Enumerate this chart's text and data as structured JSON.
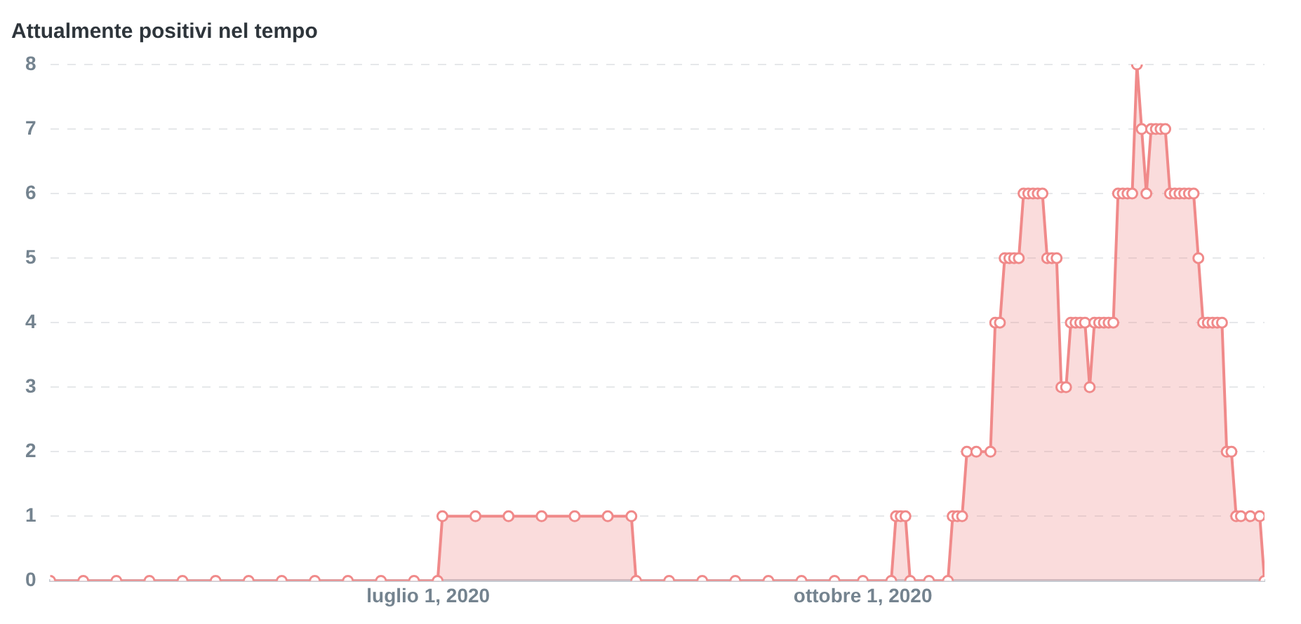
{
  "chart_data": {
    "type": "area",
    "title": "Attualmente positivi nel tempo",
    "x": [
      "2020-04-12",
      "2020-04-19",
      "2020-04-26",
      "2020-05-03",
      "2020-05-10",
      "2020-05-17",
      "2020-05-24",
      "2020-05-31",
      "2020-06-07",
      "2020-06-14",
      "2020-06-21",
      "2020-06-28",
      "2020-07-03",
      "2020-07-04",
      "2020-07-11",
      "2020-07-18",
      "2020-07-25",
      "2020-08-01",
      "2020-08-08",
      "2020-08-13",
      "2020-08-14",
      "2020-08-21",
      "2020-08-28",
      "2020-09-04",
      "2020-09-11",
      "2020-09-18",
      "2020-09-25",
      "2020-10-01",
      "2020-10-07",
      "2020-10-08",
      "2020-10-09",
      "2020-10-10",
      "2020-10-11",
      "2020-10-15",
      "2020-10-19",
      "2020-10-20",
      "2020-10-21",
      "2020-10-22",
      "2020-10-23",
      "2020-10-25",
      "2020-10-28",
      "2020-10-29",
      "2020-10-30",
      "2020-10-31",
      "2020-11-01",
      "2020-11-02",
      "2020-11-03",
      "2020-11-04",
      "2020-11-05",
      "2020-11-06",
      "2020-11-07",
      "2020-11-08",
      "2020-11-09",
      "2020-11-10",
      "2020-11-11",
      "2020-11-12",
      "2020-11-13",
      "2020-11-14",
      "2020-11-15",
      "2020-11-16",
      "2020-11-17",
      "2020-11-18",
      "2020-11-19",
      "2020-11-20",
      "2020-11-21",
      "2020-11-22",
      "2020-11-23",
      "2020-11-24",
      "2020-11-25",
      "2020-11-26",
      "2020-11-27",
      "2020-11-28",
      "2020-11-29",
      "2020-11-30",
      "2020-12-01",
      "2020-12-02",
      "2020-12-03",
      "2020-12-04",
      "2020-12-05",
      "2020-12-06",
      "2020-12-07",
      "2020-12-08",
      "2020-12-09",
      "2020-12-10",
      "2020-12-11",
      "2020-12-12",
      "2020-12-13",
      "2020-12-14",
      "2020-12-15",
      "2020-12-16",
      "2020-12-17",
      "2020-12-18",
      "2020-12-19",
      "2020-12-20",
      "2020-12-22",
      "2020-12-24",
      "2020-12-25"
    ],
    "series": [
      {
        "color": "#f08a8a",
        "values": [
          0,
          0,
          0,
          0,
          0,
          0,
          0,
          0,
          0,
          0,
          0,
          0,
          0,
          1,
          1,
          1,
          1,
          1,
          1,
          1,
          0,
          0,
          0,
          0,
          0,
          0,
          0,
          0,
          0,
          1,
          1,
          1,
          0,
          0,
          0,
          1,
          1,
          1,
          2,
          2,
          2,
          4,
          4,
          5,
          5,
          5,
          5,
          6,
          6,
          6,
          6,
          6,
          5,
          5,
          5,
          3,
          3,
          4,
          4,
          4,
          4,
          3,
          4,
          4,
          4,
          4,
          4,
          6,
          6,
          6,
          6,
          8,
          7,
          6,
          7,
          7,
          7,
          7,
          6,
          6,
          6,
          6,
          6,
          6,
          5,
          4,
          4,
          4,
          4,
          4,
          2,
          2,
          1,
          1,
          1,
          1,
          0
        ]
      }
    ],
    "xlim": [
      "2020-04-12",
      "2020-12-25"
    ],
    "xticks": [
      {
        "value": "2020-07-01",
        "label": "luglio 1, 2020"
      },
      {
        "value": "2020-10-01",
        "label": "ottobre 1, 2020"
      }
    ],
    "ylim": [
      0,
      8
    ],
    "yticks": [
      0,
      1,
      2,
      3,
      4,
      5,
      6,
      7,
      8
    ],
    "grid": "y",
    "legend": false,
    "marker": "circle",
    "line_style": "solid"
  }
}
